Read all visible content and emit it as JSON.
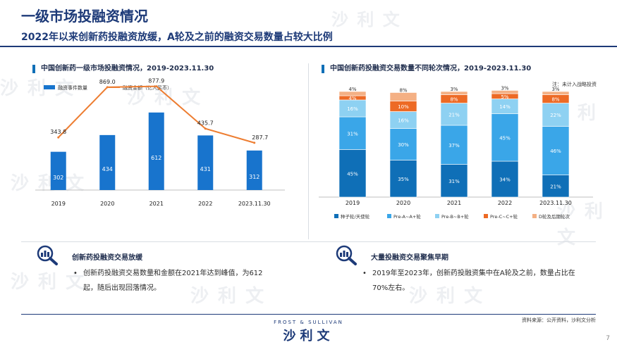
{
  "header": {
    "title": "一级市场投融资情况",
    "subtitle": "2022年以来创新药投融资放缓，A轮及之前的融资交易数量占较大比例"
  },
  "watermark": "沙 利 文",
  "colors": {
    "navy": "#1d3a78",
    "bar_blue": "#1874cd",
    "line_orange": "#ed7d31",
    "seed": "#0f6fb7",
    "pre_a": "#3aa6e8",
    "pre_b": "#8ed1f2",
    "pre_c": "#ed6a25",
    "d_plus": "#f4b084"
  },
  "chart_data": [
    {
      "type": "bar",
      "title": "中国创新药一级市场投融资情况，2019-2023.11.30",
      "categories": [
        "2019",
        "2020",
        "2021",
        "2022",
        "2023.11.30"
      ],
      "series": [
        {
          "name": "融资事件数量",
          "type": "bar",
          "values": [
            302,
            434,
            612,
            431,
            312
          ]
        },
        {
          "name": "融资金额（亿人民币）",
          "type": "line",
          "values": [
            343.8,
            869.0,
            877.9,
            435.7,
            287.7
          ]
        }
      ],
      "value_labels_bar": [
        "302",
        "434",
        "612",
        "431",
        "312"
      ],
      "value_labels_line": [
        "343.8",
        "869.0",
        "877.9",
        "435.7",
        "287.7"
      ],
      "legend_position": "top-left",
      "grid": false
    },
    {
      "type": "bar",
      "stacked": true,
      "percent": true,
      "title": "中国创新药投融资交易数量不同轮次情况，2019-2023.11.30",
      "note": "注：未计入战略投资",
      "categories": [
        "2019",
        "2020",
        "2021",
        "2022",
        "2023.11.30"
      ],
      "series": [
        {
          "name": "种子轮/天使轮",
          "values": [
            45,
            35,
            31,
            34,
            21
          ],
          "labels": [
            "45%",
            "35%",
            "31%",
            "34%",
            "21%"
          ]
        },
        {
          "name": "Pre-A~A+轮",
          "values": [
            31,
            30,
            37,
            45,
            46
          ],
          "labels": [
            "31%",
            "30%",
            "37%",
            "45%",
            "46%"
          ]
        },
        {
          "name": "Pre-B~B+轮",
          "values": [
            16,
            16,
            21,
            14,
            22
          ],
          "labels": [
            "16%",
            "16%",
            "21%",
            "14%",
            "22%"
          ]
        },
        {
          "name": "Pre-C~C+轮",
          "values": [
            4,
            10,
            8,
            5,
            8
          ],
          "labels": [
            "4%",
            "10%",
            "8%",
            "5%",
            "8%"
          ]
        },
        {
          "name": "D轮及后期轮次",
          "values": [
            4,
            8,
            3,
            3,
            3
          ],
          "labels": [
            "4%",
            "8%",
            "3%",
            "3%",
            "3%"
          ]
        }
      ],
      "ylim": [
        0,
        100
      ],
      "legend_position": "bottom",
      "grid": false
    }
  ],
  "panels": {
    "left": {
      "heading": "创新药投融资交易放缓",
      "body": "创新药投融资交易数量和金额在2021年达到峰值，为612起，随后出现回落情况。",
      "icon": "magnifier-chart-icon"
    },
    "right": {
      "heading": "大量投融资交易聚焦早期",
      "body": "2019年至2023年，创新药投融资集中在A轮及之前，数量占比在70%左右。",
      "icon": "magnifier-chart-icon"
    }
  },
  "footer": {
    "source": "资料来源：公开资料，沙利文分析",
    "logo_en": "FROST & SULLIVAN",
    "logo_cn": "沙利文",
    "page_number": "7"
  }
}
